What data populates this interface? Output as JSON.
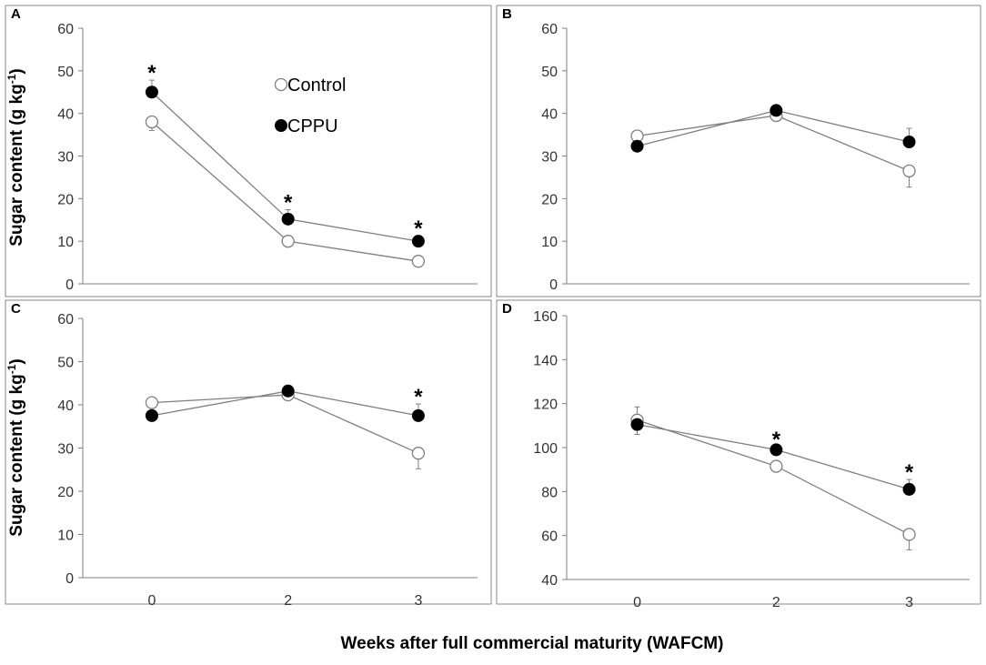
{
  "figure": {
    "ylabel": "Sugar content (g kg",
    "ylabel_sup": "-1",
    "ylabel_close": ")",
    "xlabel": "Weeks after full  commercial maturity (WAFCM)"
  },
  "colors": {
    "line": "#7f7f7f",
    "axis": "#7f7f7f",
    "frame": "#888888",
    "cppu_marker": "#000000",
    "control_marker_fill": "#ffffff",
    "control_marker_stroke": "#7f7f7f",
    "text": "#000000",
    "tick_text": "#333333"
  },
  "chart_data": [
    {
      "type": "line",
      "panel_label": "A",
      "categories": [
        "0",
        "2",
        "3"
      ],
      "ylim": [
        0,
        60
      ],
      "yticks": [
        "0",
        "10",
        "20",
        "30",
        "40",
        "50",
        "60"
      ],
      "legend": [
        "Control",
        "CPPU"
      ],
      "series": [
        {
          "name": "Control",
          "values": [
            38,
            10,
            5.3
          ],
          "errors": [
            2,
            0.8,
            0.6
          ]
        },
        {
          "name": "CPPU",
          "values": [
            45,
            15.2,
            10
          ],
          "errors": [
            2.8,
            2.2,
            1.3
          ]
        }
      ],
      "significance": [
        "*",
        "*",
        "*"
      ]
    },
    {
      "type": "line",
      "panel_label": "B",
      "categories": [
        "0",
        "2",
        "3"
      ],
      "ylim": [
        0,
        60
      ],
      "yticks": [
        "0",
        "10",
        "20",
        "30",
        "40",
        "50",
        "60"
      ],
      "series": [
        {
          "name": "Control",
          "values": [
            34.7,
            39.5,
            26.5
          ],
          "errors": [
            1.8,
            1.2,
            3.8
          ]
        },
        {
          "name": "CPPU",
          "values": [
            32.3,
            40.7,
            33.3
          ],
          "errors": [
            2.6,
            1,
            3.2
          ]
        }
      ],
      "significance": [
        "",
        "",
        ""
      ]
    },
    {
      "type": "line",
      "panel_label": "C",
      "categories": [
        "0",
        "2",
        "3"
      ],
      "ylim": [
        0,
        60
      ],
      "yticks": [
        "0",
        "10",
        "20",
        "30",
        "40",
        "50",
        "60"
      ],
      "series": [
        {
          "name": "Control",
          "values": [
            40.5,
            42.3,
            28.8
          ],
          "errors": [
            1.8,
            0.8,
            3.6
          ]
        },
        {
          "name": "CPPU",
          "values": [
            37.5,
            43.2,
            37.5
          ],
          "errors": [
            3.2,
            0.4,
            2.7
          ]
        }
      ],
      "significance": [
        "",
        "",
        "*"
      ]
    },
    {
      "type": "line",
      "panel_label": "D",
      "categories": [
        "0",
        "2",
        "3"
      ],
      "ylim": [
        40,
        160
      ],
      "yticks": [
        "40",
        "60",
        "80",
        "100",
        "120",
        "140",
        "160"
      ],
      "series": [
        {
          "name": "Control",
          "values": [
            112.5,
            91.5,
            60.5
          ],
          "errors": [
            6.5,
            1.5,
            7
          ]
        },
        {
          "name": "CPPU",
          "values": [
            110.5,
            99,
            81
          ],
          "errors": [
            8,
            1.5,
            4.5
          ]
        }
      ],
      "significance": [
        "",
        "*",
        "*"
      ]
    }
  ]
}
